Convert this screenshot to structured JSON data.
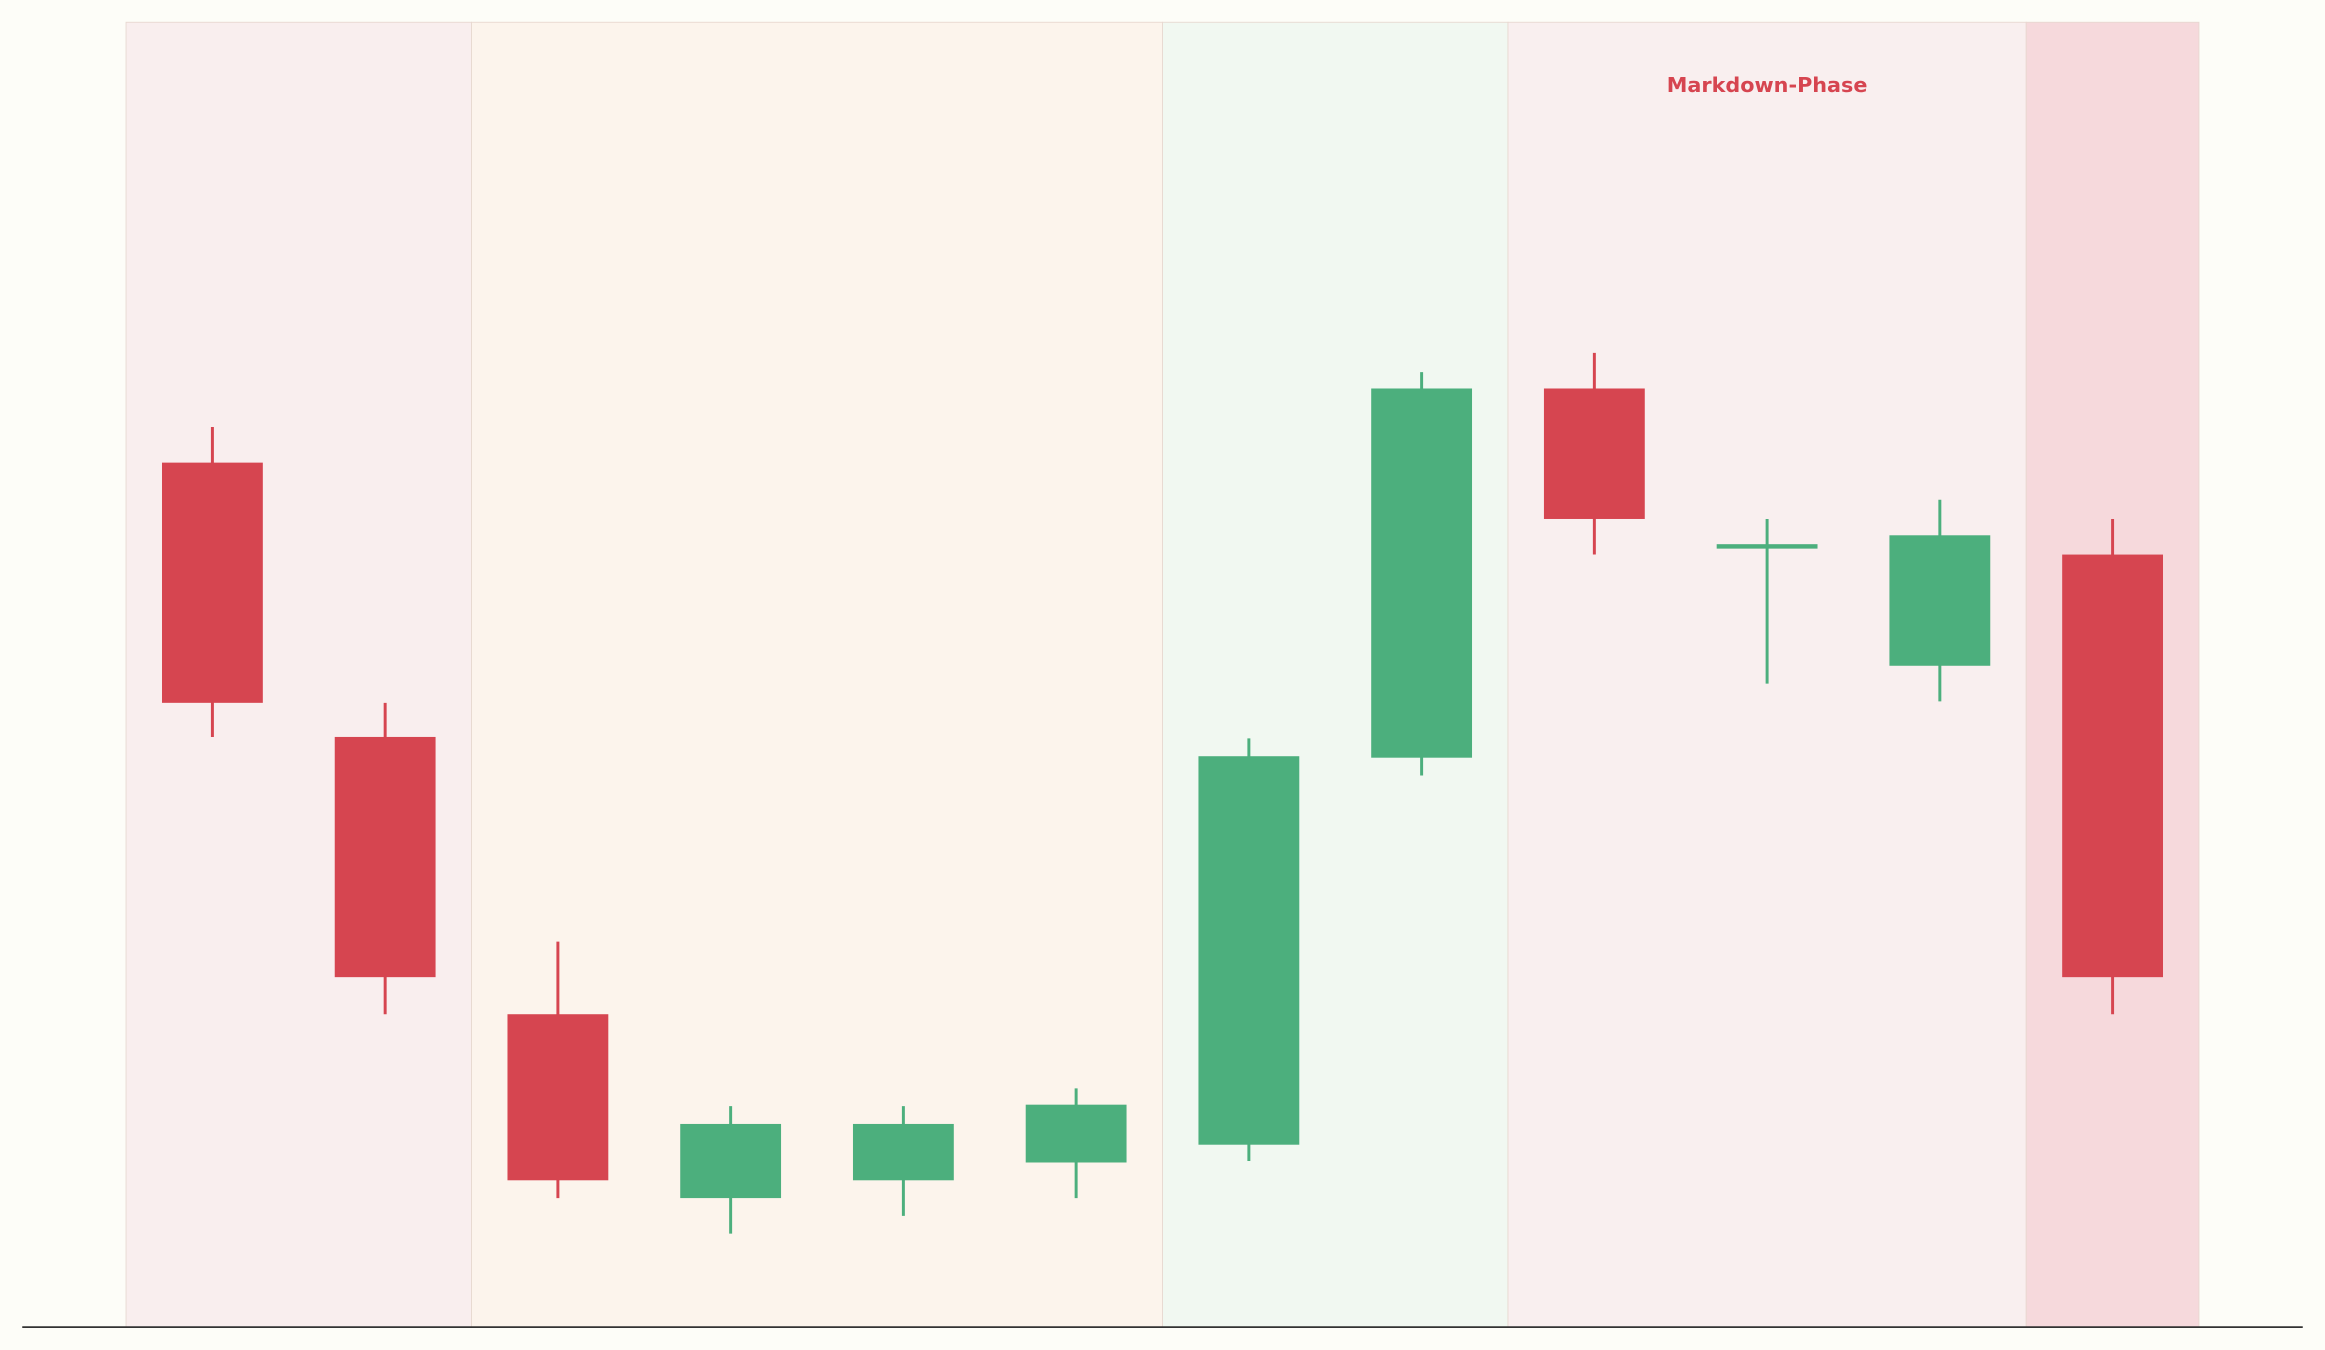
{
  "chart_data": {
    "type": "candlestick",
    "categories": [
      null,
      null,
      null,
      null,
      null,
      null,
      null,
      null,
      null,
      null,
      null,
      null
    ],
    "open": [
      58.3,
      39.8,
      21.1,
      8.7,
      9.9,
      11.1,
      12.3,
      38.4,
      63.3,
      52.6,
      44.6,
      52.1
    ],
    "high": [
      60.7,
      42.1,
      26.0,
      14.9,
      14.9,
      16.1,
      39.7,
      64.4,
      65.7,
      54.5,
      55.8,
      54.5
    ],
    "low": [
      39.8,
      21.1,
      8.7,
      6.3,
      7.5,
      8.7,
      11.2,
      37.2,
      52.1,
      43.4,
      42.2,
      21.1
    ],
    "close": [
      42.1,
      23.6,
      9.9,
      13.7,
      13.7,
      15.0,
      38.5,
      63.3,
      54.5,
      52.8,
      53.4,
      23.6
    ],
    "up_color": "#4caf7d",
    "down_color": "#d64550",
    "ylim": [
      0,
      88
    ],
    "phases": [
      {
        "start": 0,
        "end": 2,
        "color": "#f9eeee"
      },
      {
        "start": 2,
        "end": 6,
        "color": "#fcf4ec"
      },
      {
        "start": 6,
        "end": 8,
        "color": "#f1f8f1"
      },
      {
        "start": 8,
        "end": 11,
        "color": "#f9efef",
        "label": "Markdown-Phase",
        "label_color": "#d64550"
      },
      {
        "start": 11,
        "end": 12,
        "color": "#f6d9dc"
      }
    ]
  }
}
